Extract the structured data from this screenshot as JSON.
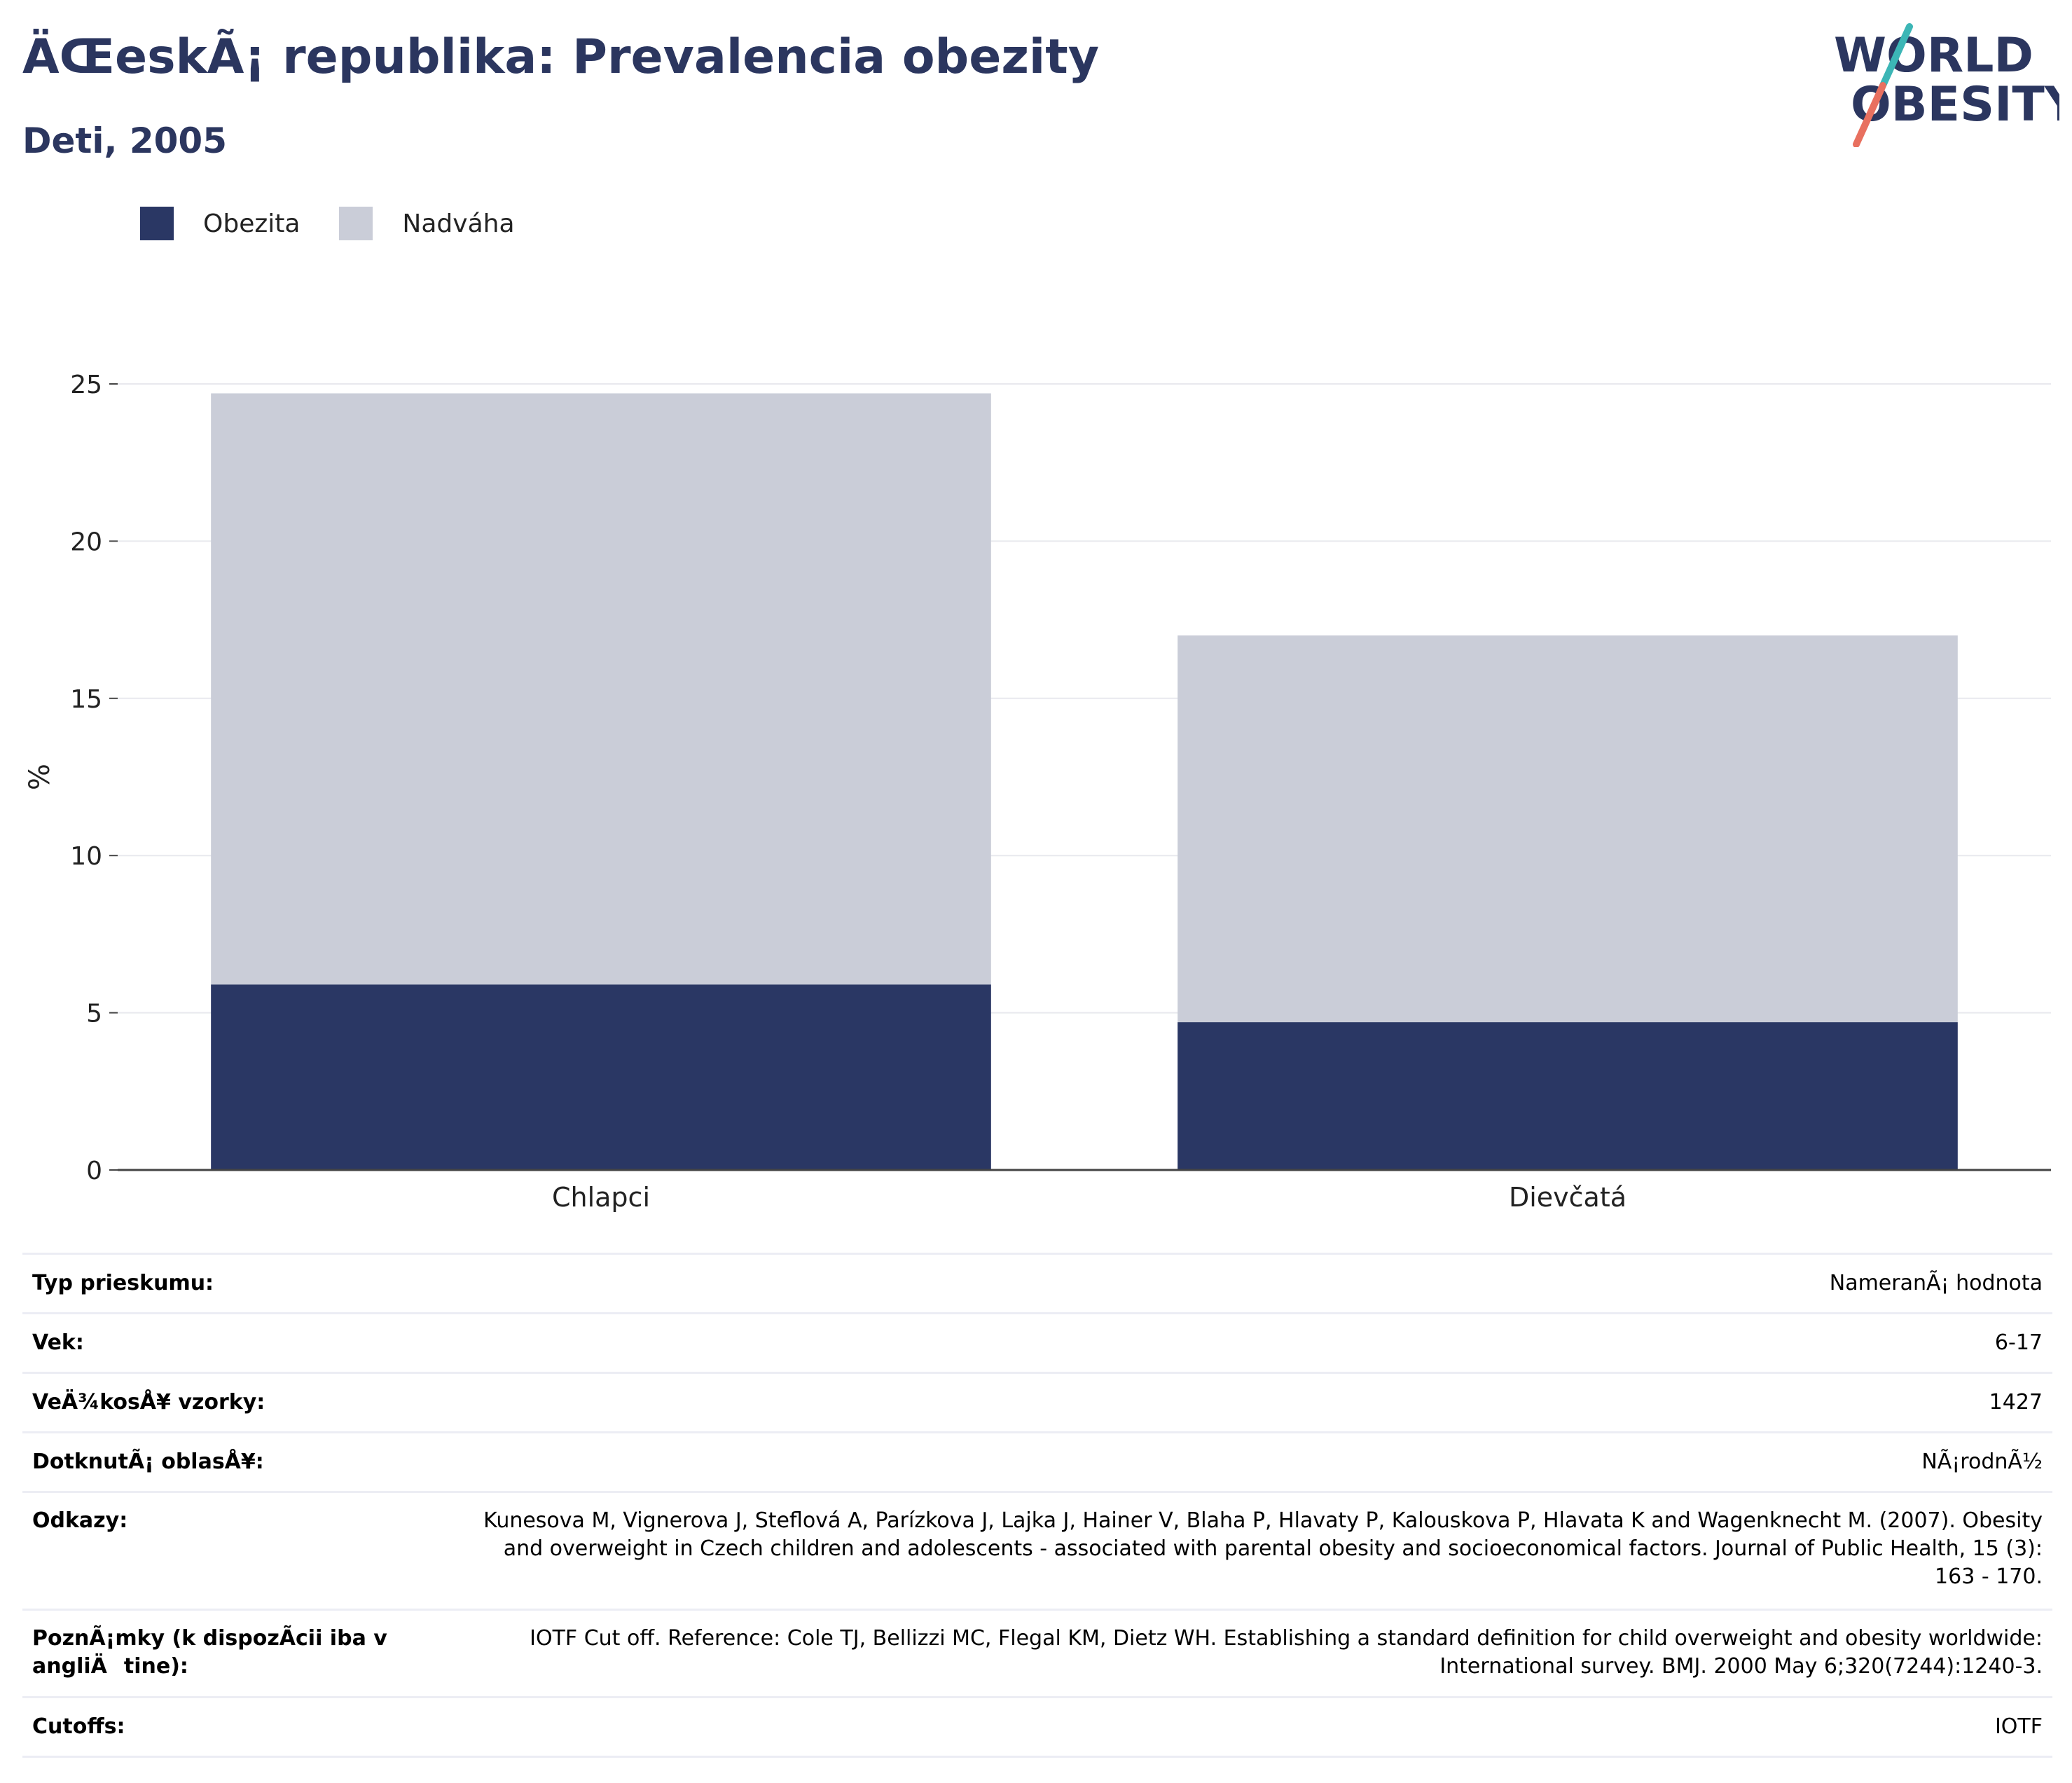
{
  "header": {
    "title": "ÄŒeskÃ¡ republika: Prevalencia obezity",
    "subtitle": "Deti, 2005",
    "logo_text_top": "WORLD",
    "logo_text_bottom": "OBESITY"
  },
  "colors": {
    "title": "#2b365f",
    "obesity": "#2a3764",
    "overweight": "#cacdd8",
    "logo_slash_top": "#3cb6b6",
    "logo_slash_bottom": "#e8705f"
  },
  "legend": {
    "items": [
      {
        "label": "Obezita",
        "color": "#2a3764"
      },
      {
        "label": "Nadváha",
        "color": "#cacdd8"
      }
    ]
  },
  "chart_data": {
    "type": "bar",
    "stacked": true,
    "categories": [
      "Chlapci",
      "Dievčatá"
    ],
    "series": [
      {
        "name": "Obezita",
        "values": [
          5.9,
          4.7
        ],
        "color": "#2a3764"
      },
      {
        "name": "Nadváha",
        "values": [
          18.8,
          12.3
        ],
        "color": "#cacdd8"
      }
    ],
    "ylabel": "%",
    "ylim": [
      0,
      25
    ],
    "yticks": [
      0,
      5,
      10,
      15,
      20,
      25
    ],
    "grid": true,
    "legend_position": "top-left"
  },
  "info": {
    "rows": [
      {
        "key": "Typ prieskumu:",
        "value": "NameranÃ¡ hodnota"
      },
      {
        "key": "Vek:",
        "value": "6-17"
      },
      {
        "key": "VeÄ¾kosÅ¥ vzorky:",
        "value": "1427"
      },
      {
        "key": "DotknutÃ¡ oblasÅ¥:",
        "value": "NÃ¡rodnÃ½"
      },
      {
        "key": "Odkazy:",
        "value": "Kunesova M, Vignerova J, Steflová A, Parízkova J, Lajka J, Hainer V, Blaha P, Hlavaty P, Kalouskova P, Hlavata K and Wagenknecht M. (2007). Obesity and overweight in Czech children and adolescents - associated with parental obesity and socioeconomical factors. Journal of Public Health, 15 (3): 163 - 170."
      },
      {
        "key": "PoznÃ¡mky (k dispozÃ­cii iba v angliÄtine):",
        "value": "IOTF Cut off. Reference: Cole TJ, Bellizzi MC, Flegal KM, Dietz WH. Establishing a standard definition for child overweight and obesity worldwide: International survey. BMJ. 2000 May 6;320(7244):1240-3."
      },
      {
        "key": "Cutoffs:",
        "value": "IOTF"
      }
    ]
  }
}
